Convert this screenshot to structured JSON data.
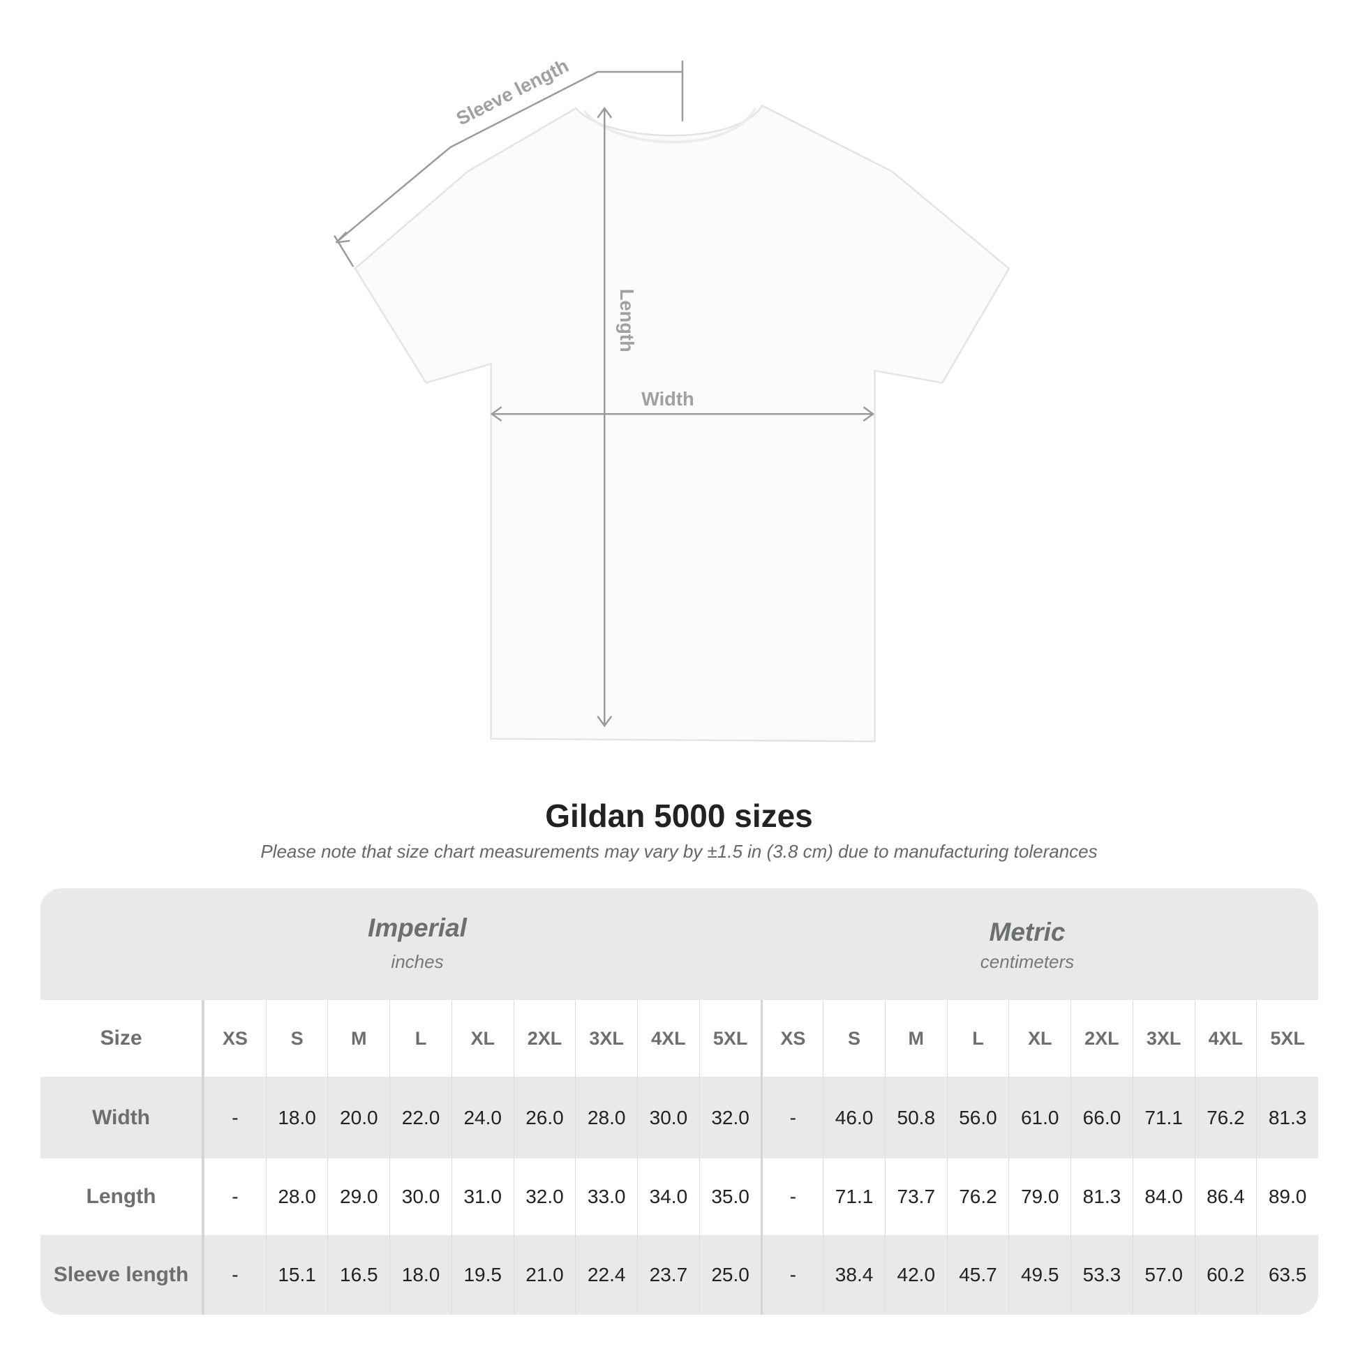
{
  "diagram": {
    "sleeve_label": "Sleeve length",
    "length_label": "Length",
    "width_label": "Width"
  },
  "title": "Gildan 5000 sizes",
  "subtitle": "Please note that size chart measurements may vary by ±1.5 in (3.8 cm) due to manufacturing tolerances",
  "table": {
    "imperial": {
      "label": "Imperial",
      "unit": "inches"
    },
    "metric": {
      "label": "Metric",
      "unit": "centimeters"
    },
    "size_label": "Size",
    "sizes": [
      "XS",
      "S",
      "M",
      "L",
      "XL",
      "2XL",
      "3XL",
      "4XL",
      "5XL"
    ],
    "rows": [
      {
        "label": "Width",
        "imperial": [
          "-",
          "18.0",
          "20.0",
          "22.0",
          "24.0",
          "26.0",
          "28.0",
          "30.0",
          "32.0"
        ],
        "metric": [
          "-",
          "46.0",
          "50.8",
          "56.0",
          "61.0",
          "66.0",
          "71.1",
          "76.2",
          "81.3"
        ]
      },
      {
        "label": "Length",
        "imperial": [
          "-",
          "28.0",
          "29.0",
          "30.0",
          "31.0",
          "32.0",
          "33.0",
          "34.0",
          "35.0"
        ],
        "metric": [
          "-",
          "71.1",
          "73.7",
          "76.2",
          "79.0",
          "81.3",
          "84.0",
          "86.4",
          "89.0"
        ]
      },
      {
        "label": "Sleeve length",
        "imperial": [
          "-",
          "15.1",
          "16.5",
          "18.0",
          "19.5",
          "21.0",
          "22.4",
          "23.7",
          "25.0"
        ],
        "metric": [
          "-",
          "38.4",
          "42.0",
          "45.7",
          "49.5",
          "53.3",
          "57.0",
          "60.2",
          "63.5"
        ]
      }
    ]
  },
  "colors": {
    "label_grey": "#6b6f70",
    "band_grey": "#e9e9e9",
    "arrow_grey": "#999999"
  }
}
